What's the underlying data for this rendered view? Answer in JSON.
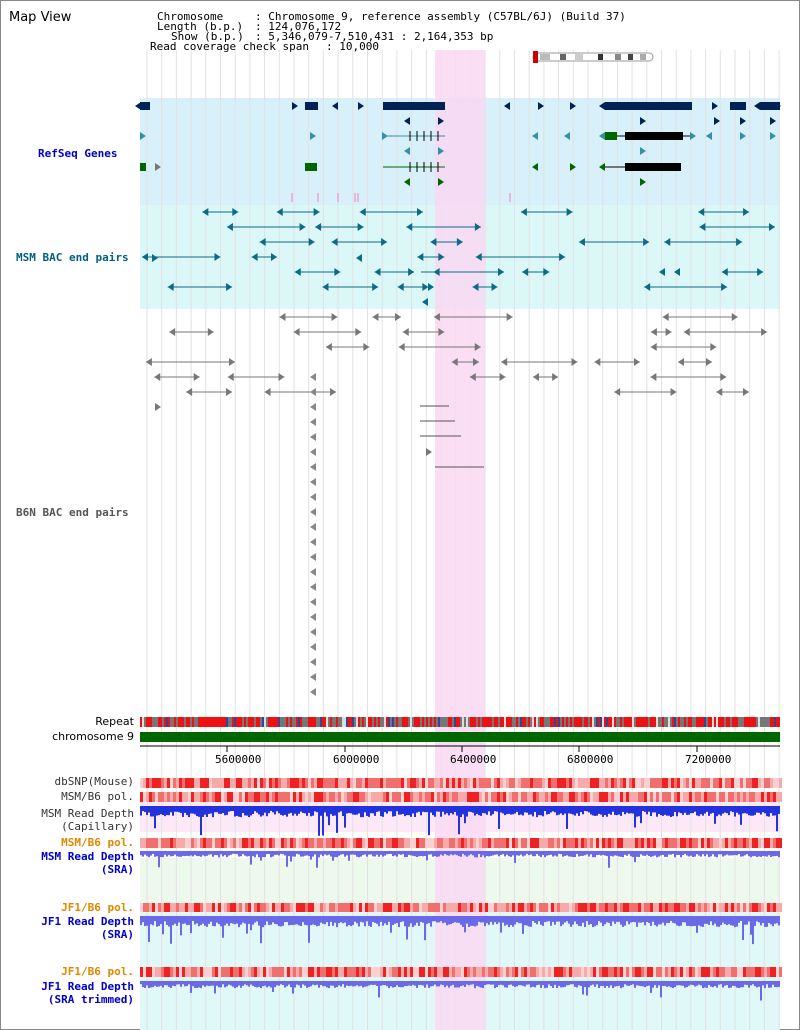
{
  "title": "Map View",
  "info": {
    "chromosome_key": "Chromosome",
    "chromosome_val": ": Chromosome 9, reference assembly (C57BL/6J) (Build 37)",
    "length_key": "Length (b.p.)",
    "length_val": ": 124,076,172",
    "show_key": "Show (b.p.)",
    "show_val": ": 5,346,079-7,510,431 : 2,164,353 bp",
    "coverage_key": "Read coverage check span",
    "coverage_val": ": 10,000"
  },
  "tracks": {
    "refseq": "RefSeq Genes",
    "msm_bac": "MSM BAC end pairs",
    "b6n_bac": "B6N BAC end pairs",
    "repeat": "Repeat",
    "chromosome": "chromosome 9"
  },
  "axis_ticks": [
    "5600000",
    "6000000",
    "6400000",
    "6800000",
    "7200000"
  ],
  "lower_tracks": {
    "dbsnp": "dbSNP(Mouse)",
    "msm_b6_pol_1": "MSM/B6 pol.",
    "msm_depth_cap": "MSM Read Depth",
    "msm_depth_cap_sub": "(Capillary)",
    "msm_b6_pol_2": "MSM/B6 pol.",
    "msm_depth_sra": "MSM Read Depth",
    "msm_depth_sra_sub": "(SRA)",
    "jf1_b6_pol_1": "JF1/B6 pol.",
    "jf1_depth_sra": "JF1 Read Depth",
    "jf1_depth_sra_sub": "(SRA)",
    "jf1_b6_pol_2": "JF1/B6 pol.",
    "jf1_depth_trim": "JF1 Read Depth",
    "jf1_depth_trim_sub": "(SRA trimmed)"
  },
  "colors": {
    "refseq_bg": "#d8f0fa",
    "msm_bg": "#dcf7f7",
    "highlight": "#f9d9f2",
    "chromosome_bar": "#006600",
    "navy": "#002255",
    "gene_teal": "#3390a8",
    "gene_green": "#006600",
    "bac_teal": "#0a6a88",
    "bac_gray": "#777777",
    "depth_blue": "#2233dd",
    "depth_violet": "#6a6ae8"
  }
}
